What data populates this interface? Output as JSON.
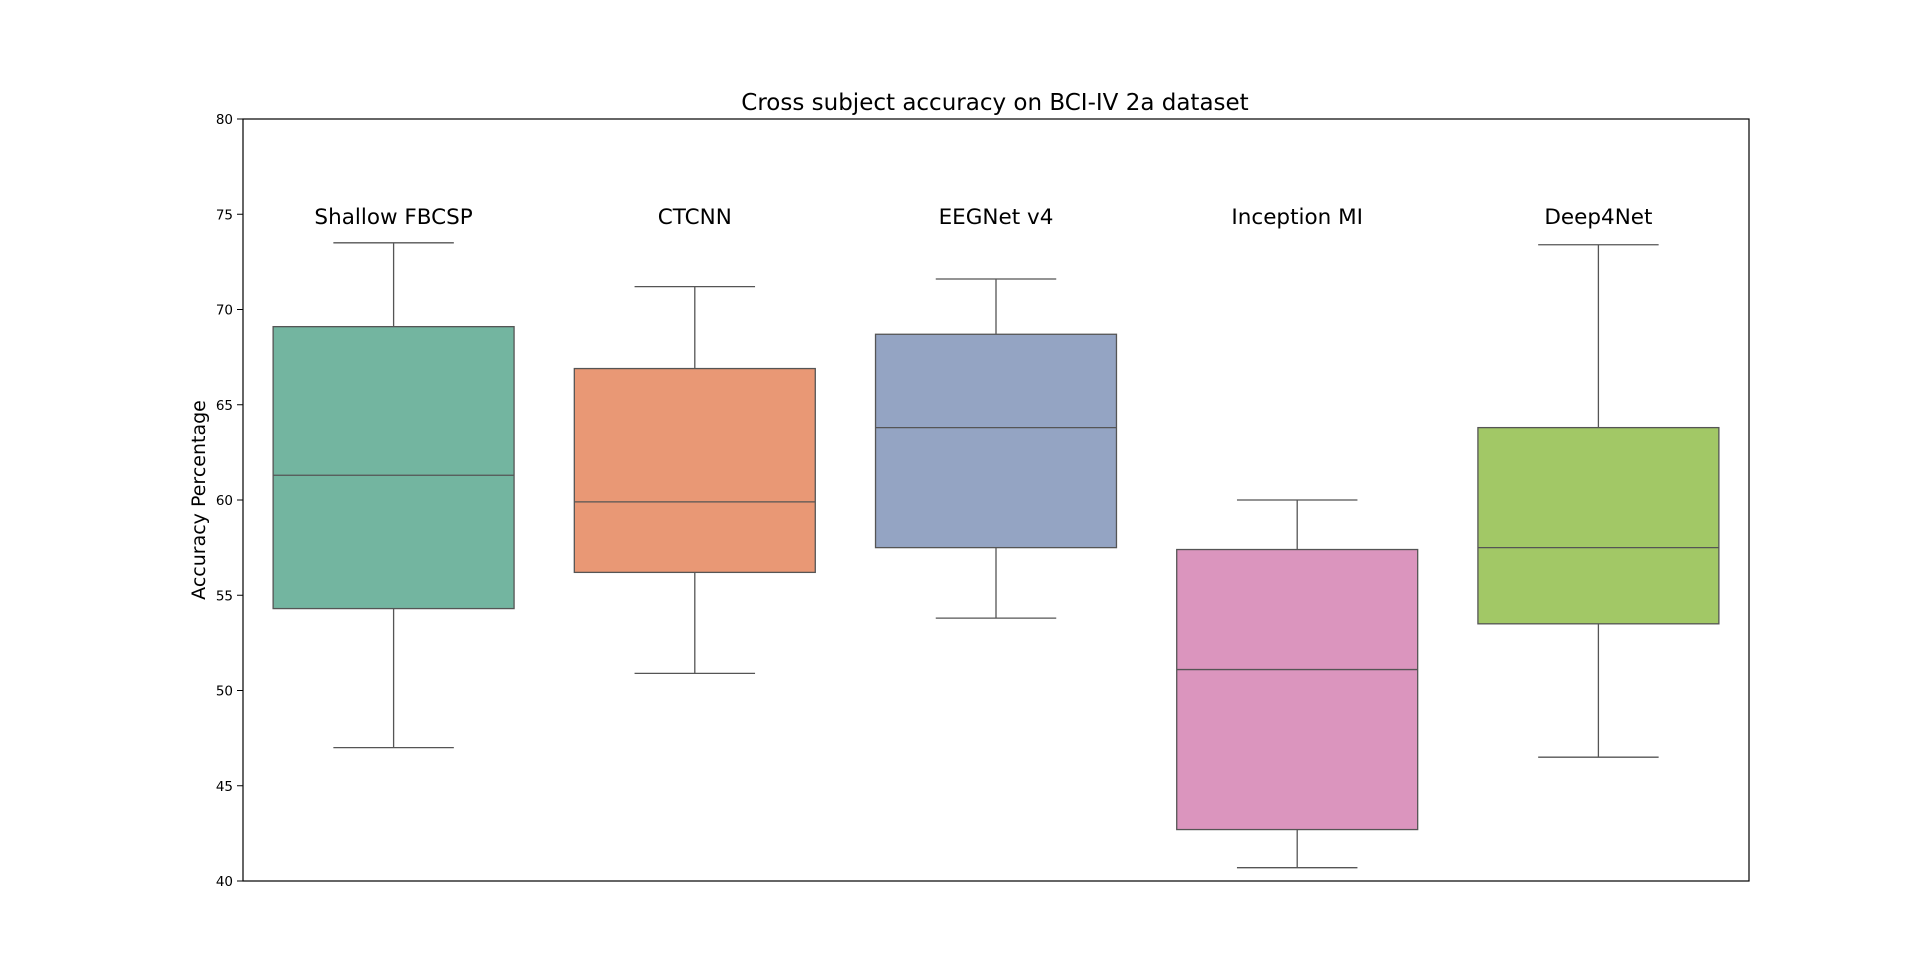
{
  "chart_data": {
    "type": "box",
    "title": "Cross subject accuracy on BCI-IV 2a dataset",
    "xlabel": "",
    "ylabel": "Accuracy Percentage",
    "ylim": [
      40,
      80
    ],
    "yticks": [
      40,
      45,
      50,
      55,
      60,
      65,
      70,
      75,
      80
    ],
    "grid": false,
    "legend": "none",
    "categories": [
      "Shallow FBCSP",
      "CTCNN",
      "EEGNet v4",
      "Inception MI",
      "Deep4Net"
    ],
    "boxes": [
      {
        "category": "Shallow FBCSP",
        "whisker_low": 47.0,
        "q1": 54.3,
        "median": 61.3,
        "q3": 69.1,
        "whisker_high": 73.5,
        "color": "#73b5a0"
      },
      {
        "category": "CTCNN",
        "whisker_low": 50.9,
        "q1": 56.2,
        "median": 59.9,
        "q3": 66.9,
        "whisker_high": 71.2,
        "color": "#e99875"
      },
      {
        "category": "EEGNet v4",
        "whisker_low": 53.8,
        "q1": 57.5,
        "median": 63.8,
        "q3": 68.7,
        "whisker_high": 71.6,
        "color": "#94a4c3"
      },
      {
        "category": "Inception MI",
        "whisker_low": 40.7,
        "q1": 42.7,
        "median": 51.1,
        "q3": 57.4,
        "whisker_high": 60.0,
        "color": "#db95be"
      },
      {
        "category": "Deep4Net",
        "whisker_low": 46.5,
        "q1": 53.5,
        "median": 57.5,
        "q3": 63.8,
        "whisker_high": 73.4,
        "color": "#a2c866"
      }
    ]
  }
}
